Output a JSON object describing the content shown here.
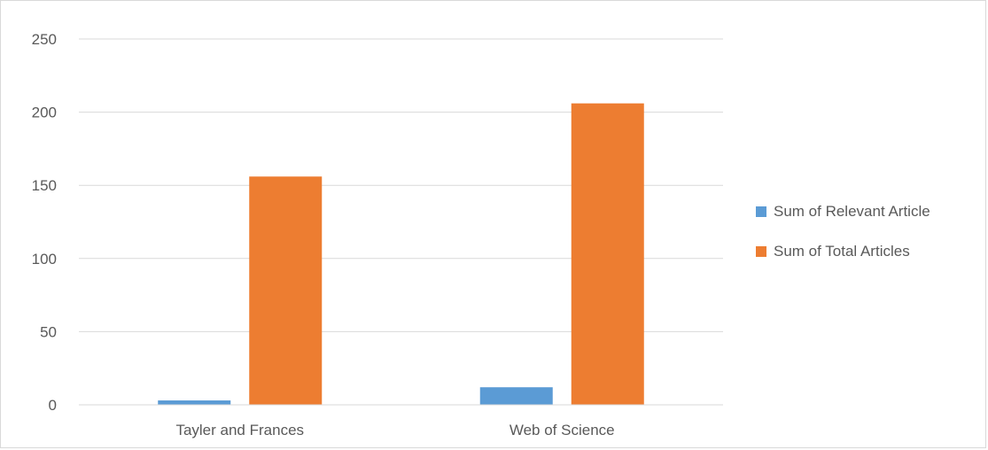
{
  "chart_data": {
    "type": "bar",
    "title": "",
    "xlabel": "",
    "ylabel": "",
    "categories": [
      "Tayler and Frances",
      "Web of Science"
    ],
    "series": [
      {
        "name": "Sum of Relevant Article",
        "values": [
          3,
          12
        ],
        "color": "#5b9bd5"
      },
      {
        "name": "Sum of Total Articles",
        "values": [
          156,
          206
        ],
        "color": "#ed7d31"
      }
    ],
    "ylim": [
      0,
      250
    ],
    "yticks": [
      0,
      50,
      100,
      150,
      200,
      250
    ],
    "grid": true,
    "legend_position": "right"
  }
}
